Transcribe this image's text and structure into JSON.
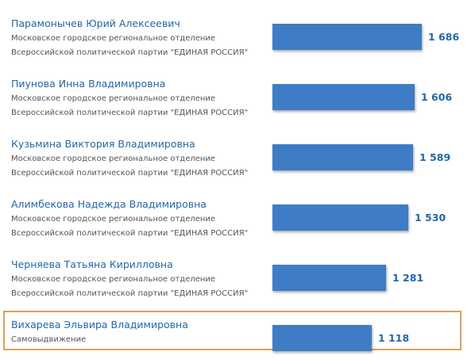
{
  "chart_data": {
    "type": "bar",
    "orientation": "horizontal",
    "highlight_color": "#d9a25e",
    "bar_color": "#3e7cc5",
    "items": [
      {
        "name": "Парамонычев Юрий Алексеевич",
        "party": "Московское городское региональное отделение Всероссийской политической партии \"ЕДИНАЯ РОССИЯ\"",
        "value": 1686,
        "label": "1 686",
        "highlighted": false
      },
      {
        "name": "Пиунова Инна Владимировна",
        "party": "Московское городское региональное отделение Всероссийской политической партии \"ЕДИНАЯ РОССИЯ\"",
        "value": 1606,
        "label": "1 606",
        "highlighted": false
      },
      {
        "name": "Кузьмина Виктория Владимировна",
        "party": "Московское городское региональное отделение Всероссийской политической партии \"ЕДИНАЯ РОССИЯ\"",
        "value": 1589,
        "label": "1 589",
        "highlighted": false
      },
      {
        "name": "Алимбекова Надежда Владимировна",
        "party": "Московское городское региональное отделение Всероссийской политической партии \"ЕДИНАЯ РОССИЯ\"",
        "value": 1530,
        "label": "1 530",
        "highlighted": false
      },
      {
        "name": "Черняева Татьяна Кирилловна",
        "party": "Московское городское региональное отделение Всероссийской политической партии \"ЕДИНАЯ РОССИЯ\"",
        "value": 1281,
        "label": "1 281",
        "highlighted": false
      },
      {
        "name": "Вихарева Эльвира Владимировна",
        "party": "Самовыдвижение",
        "value": 1118,
        "label": "1 118",
        "highlighted": true
      }
    ]
  }
}
